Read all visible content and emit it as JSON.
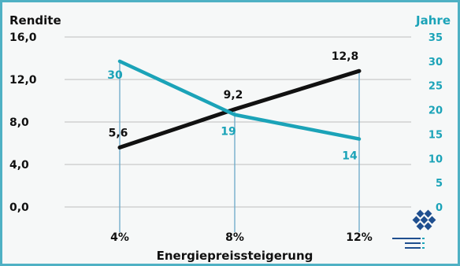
{
  "chart_data": {
    "type": "line",
    "categories": [
      "4%",
      "8%",
      "12%"
    ],
    "xlabel": "Energiepreissteigerung",
    "y_left": {
      "label": "Rendite",
      "range": [
        0,
        16
      ],
      "ticks": [
        "0,0",
        "4,0",
        "8,0",
        "12,0",
        "16,0"
      ],
      "tick_values": [
        0,
        4,
        8,
        12,
        16
      ]
    },
    "y_right": {
      "label": "Jahre",
      "range": [
        0,
        35
      ],
      "ticks": [
        "0",
        "5",
        "10",
        "15",
        "20",
        "25",
        "30",
        "35"
      ],
      "tick_values": [
        0,
        5,
        10,
        15,
        20,
        25,
        30,
        35
      ]
    },
    "grid": true,
    "series": [
      {
        "axis": "left",
        "color": "#111111",
        "values": [
          5.6,
          9.2,
          12.8
        ],
        "labels": [
          "5,6",
          "9,2",
          "12,8"
        ]
      },
      {
        "axis": "right",
        "color": "#1ba3b8",
        "values": [
          30,
          19,
          14
        ],
        "labels": [
          "30",
          "19",
          "14"
        ]
      }
    ],
    "colors": {
      "frame": "#4fb1c4",
      "right_axis": "#1ba3b8",
      "left_axis": "#111111",
      "grid": "#c9c9c9",
      "drop_lines": "#6aa8c8"
    }
  },
  "logo": {
    "name": "company-logo",
    "text_lines": [
      "",
      "",
      ""
    ]
  }
}
